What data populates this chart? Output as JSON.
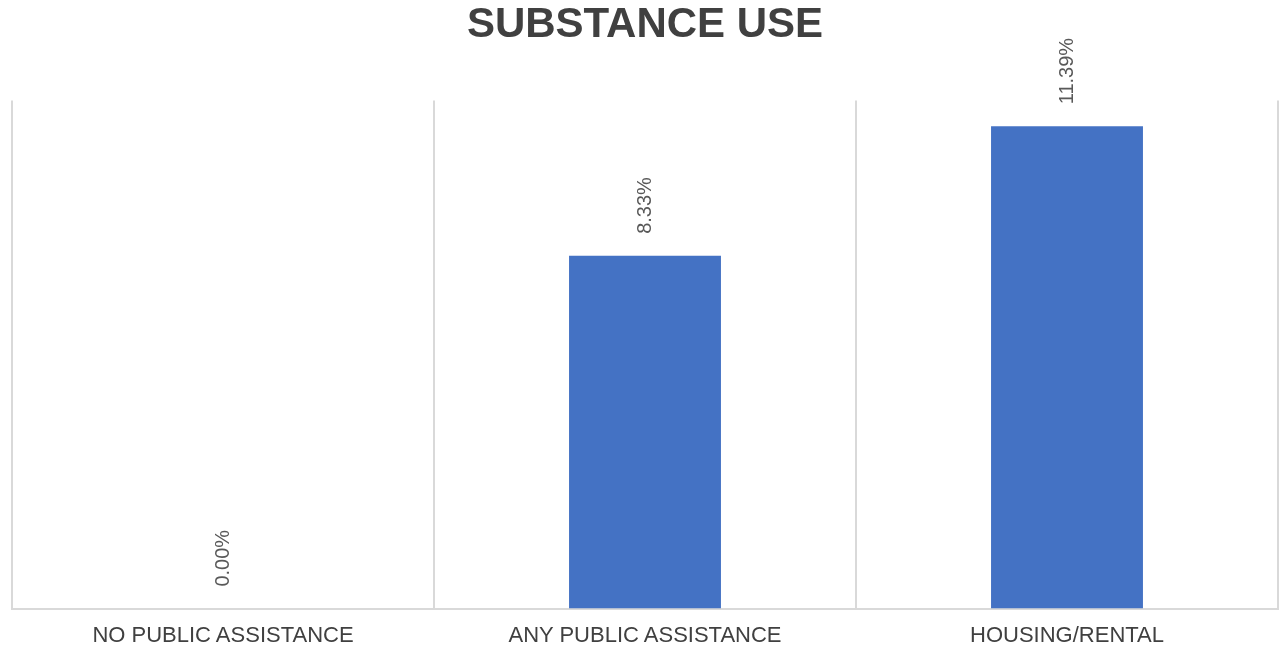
{
  "chart_data": {
    "type": "bar",
    "title": "SUBSTANCE USE",
    "categories": [
      "NO PUBLIC ASSISTANCE",
      "ANY PUBLIC ASSISTANCE",
      "HOUSING/RENTAL"
    ],
    "values": [
      0,
      8.33,
      11.39
    ],
    "color": "#4472c4",
    "value_labels": [
      "0.00%",
      "8.33%",
      "11.39%"
    ],
    "grid": "x",
    "legend": false
  }
}
